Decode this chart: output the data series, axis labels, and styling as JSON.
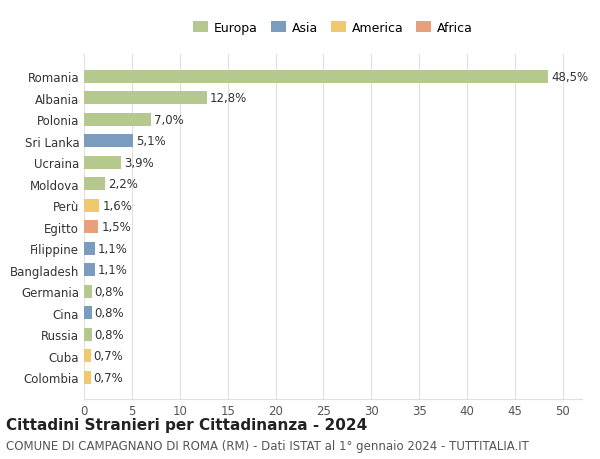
{
  "countries": [
    "Romania",
    "Albania",
    "Polonia",
    "Sri Lanka",
    "Ucraina",
    "Moldova",
    "Perù",
    "Egitto",
    "Filippine",
    "Bangladesh",
    "Germania",
    "Cina",
    "Russia",
    "Cuba",
    "Colombia"
  ],
  "values": [
    48.5,
    12.8,
    7.0,
    5.1,
    3.9,
    2.2,
    1.6,
    1.5,
    1.1,
    1.1,
    0.8,
    0.8,
    0.8,
    0.7,
    0.7
  ],
  "labels": [
    "48,5%",
    "12,8%",
    "7,0%",
    "5,1%",
    "3,9%",
    "2,2%",
    "1,6%",
    "1,5%",
    "1,1%",
    "1,1%",
    "0,8%",
    "0,8%",
    "0,8%",
    "0,7%",
    "0,7%"
  ],
  "continents": [
    "Europa",
    "Europa",
    "Europa",
    "Asia",
    "Europa",
    "Europa",
    "America",
    "Africa",
    "Asia",
    "Asia",
    "Europa",
    "Asia",
    "Europa",
    "America",
    "America"
  ],
  "colors": {
    "Europa": "#b5c98e",
    "Asia": "#7a9cbf",
    "America": "#f0c96e",
    "Africa": "#e8a07a"
  },
  "legend_order": [
    "Europa",
    "Asia",
    "America",
    "Africa"
  ],
  "title": "Cittadini Stranieri per Cittadinanza - 2024",
  "subtitle": "COMUNE DI CAMPAGNANO DI ROMA (RM) - Dati ISTAT al 1° gennaio 2024 - TUTTITALIA.IT",
  "xlim": [
    0,
    52
  ],
  "xticks": [
    0,
    5,
    10,
    15,
    20,
    25,
    30,
    35,
    40,
    45,
    50
  ],
  "bg_color": "#ffffff",
  "grid_color": "#e0e0e0",
  "bar_height": 0.6,
  "title_fontsize": 11,
  "subtitle_fontsize": 8.5,
  "label_fontsize": 8.5,
  "tick_fontsize": 8.5,
  "legend_fontsize": 9
}
